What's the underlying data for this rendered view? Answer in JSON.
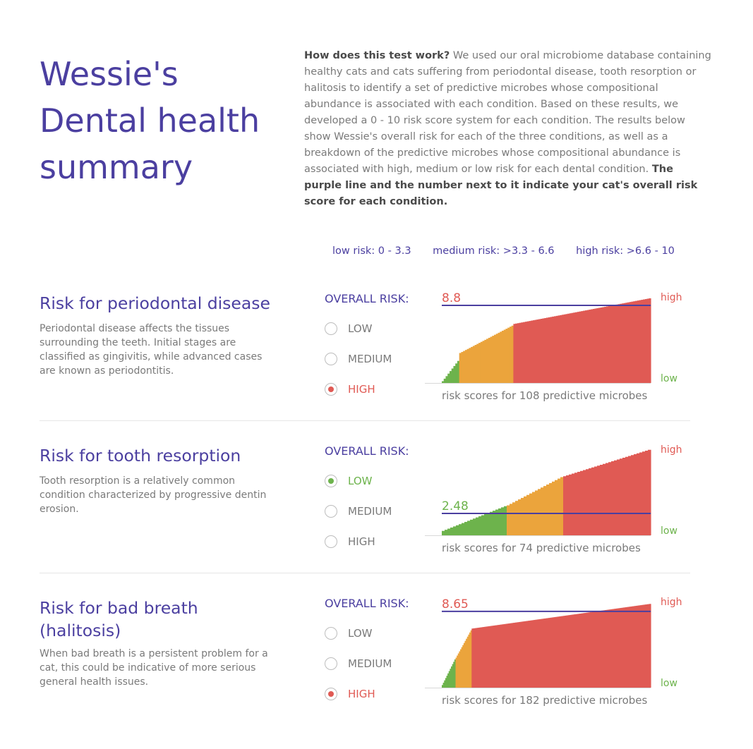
{
  "header": {
    "title": "Wessie's Dental health summary",
    "intro_lead": "How does this test work?",
    "intro_body": " We used our oral microbiome database containing healthy cats and cats suffering from periodontal disease, tooth resorption or halitosis to identify a set of predictive microbes whose compositional abundance is associated with each condition. Based on these results, we developed a 0 - 10 risk score system for each condition. The results below show Wessie's overall risk for each of the three conditions, as well as a breakdown of the predictive microbes whose compositional abundance is associated with high, medium or low risk for each dental condition. ",
    "intro_tail": "The purple line and the number next to it indicate your cat's overall risk score for each condition."
  },
  "legend": {
    "low": "low risk: 0 - 3.3",
    "medium": "medium risk: >3.3 - 6.6",
    "high": "high risk: >6.6 - 10"
  },
  "colors": {
    "purple": "#4b3fa0",
    "low": "#6db34c",
    "medium": "#eba43c",
    "high": "#e05a54"
  },
  "common": {
    "overall_label": "OVERALL RISK:",
    "opt_low": "LOW",
    "opt_medium": "MEDIUM",
    "opt_high": "HIGH",
    "high_label": "high",
    "low_label": "low"
  },
  "sections": [
    {
      "title": "Risk for periodontal disease",
      "description": "Periodontal disease affects the tissues surrounding the teeth. Initial stages are classified as gingivitis, while advanced cases are known as periodontitis.",
      "selected": "high",
      "score_label": "8.8",
      "caption": "risk scores for 108 predictive microbes"
    },
    {
      "title": "Risk for tooth resorption",
      "description": "Tooth resorption is a relatively common condition characterized by progressive dentin erosion.",
      "selected": "low",
      "score_label": "2.48",
      "caption": "risk scores for 74 predictive microbes"
    },
    {
      "title": "Risk for bad breath (halitosis)",
      "description": "When bad breath is a persistent problem for a cat, this could be indicative of more serious general health issues.",
      "selected": "high",
      "score_label": "8.65",
      "caption": "risk scores for 182 predictive microbes"
    }
  ],
  "chart_data": [
    {
      "type": "bar",
      "count": 108,
      "overall_score": 8.8,
      "ylim": [
        0,
        10
      ],
      "thresholds": [
        3.3,
        6.6
      ],
      "low_count": 9,
      "medium_count": 28,
      "high_count": 71,
      "low_range": [
        0.2,
        2.5
      ],
      "medium_range": [
        3.4,
        6.5
      ],
      "high_range": [
        6.7,
        9.6
      ]
    },
    {
      "type": "bar",
      "count": 74,
      "overall_score": 2.48,
      "ylim": [
        0,
        10
      ],
      "thresholds": [
        3.3,
        6.6
      ],
      "low_count": 23,
      "medium_count": 20,
      "high_count": 31,
      "low_range": [
        0.5,
        3.3
      ],
      "medium_range": [
        3.4,
        6.6
      ],
      "high_range": [
        6.7,
        9.7
      ]
    },
    {
      "type": "bar",
      "count": 182,
      "overall_score": 8.65,
      "ylim": [
        0,
        10
      ],
      "thresholds": [
        3.3,
        6.6
      ],
      "low_count": 12,
      "medium_count": 14,
      "high_count": 156,
      "low_range": [
        0.3,
        3.2
      ],
      "medium_range": [
        3.4,
        6.5
      ],
      "high_range": [
        6.7,
        9.5
      ]
    }
  ]
}
